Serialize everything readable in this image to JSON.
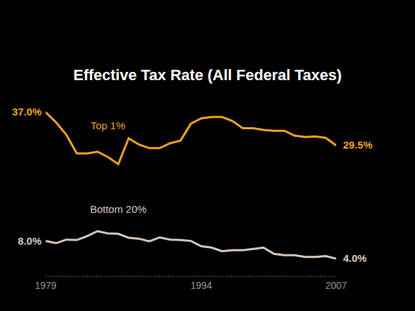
{
  "chart_data": {
    "type": "line",
    "title": "Effective Tax Rate (All Federal Taxes)",
    "x": [
      1979,
      1980,
      1981,
      1982,
      1983,
      1984,
      1985,
      1986,
      1987,
      1988,
      1989,
      1990,
      1991,
      1992,
      1993,
      1994,
      1995,
      1996,
      1997,
      1998,
      1999,
      2000,
      2001,
      2002,
      2003,
      2004,
      2005,
      2006,
      2007
    ],
    "xlim": [
      1979,
      2007
    ],
    "xticks": [
      1979,
      1994,
      2007
    ],
    "ylim": [
      0,
      40
    ],
    "tick_labels": "x",
    "grid": false,
    "series": [
      {
        "name": "Top 1%",
        "color": "#f5a623",
        "values": [
          37.0,
          34.7,
          31.9,
          27.7,
          27.7,
          28.1,
          26.9,
          25.3,
          31.1,
          29.7,
          28.9,
          28.9,
          30.0,
          30.6,
          34.4,
          35.6,
          35.9,
          35.9,
          35.0,
          33.4,
          33.4,
          33.0,
          32.8,
          32.8,
          31.7,
          31.4,
          31.5,
          31.2,
          29.5
        ],
        "value_labels": [
          "37.0%",
          null,
          null,
          null,
          null,
          null,
          null,
          null,
          null,
          null,
          null,
          null,
          null,
          null,
          null,
          null,
          null,
          null,
          null,
          null,
          null,
          null,
          null,
          null,
          null,
          null,
          null,
          null,
          "29.5%"
        ]
      },
      {
        "name": "Bottom 20%",
        "color": "#dccdbf",
        "values": [
          8.0,
          7.5,
          8.3,
          8.2,
          9.1,
          10.2,
          9.7,
          9.6,
          8.7,
          8.5,
          7.9,
          8.8,
          8.3,
          8.2,
          8.0,
          6.8,
          6.5,
          5.7,
          5.9,
          5.9,
          6.2,
          6.5,
          5.1,
          4.8,
          4.8,
          4.4,
          4.4,
          4.6,
          4.0
        ],
        "value_labels": [
          "8.0%",
          null,
          null,
          null,
          null,
          null,
          null,
          null,
          null,
          null,
          null,
          null,
          null,
          null,
          null,
          null,
          null,
          null,
          null,
          null,
          null,
          null,
          null,
          null,
          null,
          null,
          null,
          null,
          "4.0%"
        ]
      }
    ]
  }
}
